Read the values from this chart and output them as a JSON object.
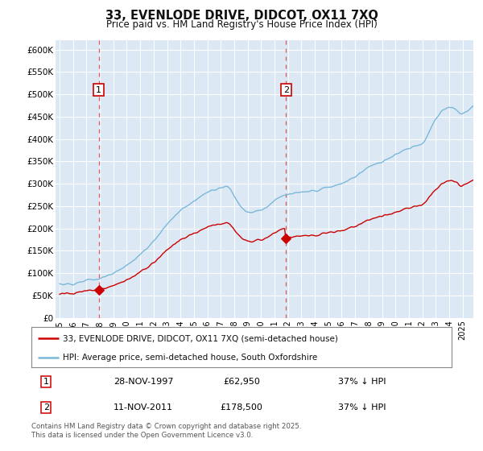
{
  "title": "33, EVENLODE DRIVE, DIDCOT, OX11 7XQ",
  "subtitle": "Price paid vs. HM Land Registry's House Price Index (HPI)",
  "plot_bg_color": "#dce9f5",
  "ylim": [
    0,
    620000
  ],
  "yticks": [
    0,
    50000,
    100000,
    150000,
    200000,
    250000,
    300000,
    350000,
    400000,
    450000,
    500000,
    550000,
    600000
  ],
  "ytick_labels": [
    "£0",
    "£50K",
    "£100K",
    "£150K",
    "£200K",
    "£250K",
    "£300K",
    "£350K",
    "£400K",
    "£450K",
    "£500K",
    "£550K",
    "£600K"
  ],
  "hpi_color": "#7ab8d9",
  "price_color": "#cc0000",
  "marker_color": "#cc0000",
  "vline_color": "#dd4444",
  "annotation_box_color": "#cc0000",
  "purchase1_year": 1997.91,
  "purchase1_price": 62950,
  "purchase2_year": 2011.86,
  "purchase2_price": 178500,
  "legend_label1": "33, EVENLODE DRIVE, DIDCOT, OX11 7XQ (semi-detached house)",
  "legend_label2": "HPI: Average price, semi-detached house, South Oxfordshire",
  "annotation1_date": "28-NOV-1997",
  "annotation1_price": "£62,950",
  "annotation1_pct": "37% ↓ HPI",
  "annotation2_date": "11-NOV-2011",
  "annotation2_price": "£178,500",
  "annotation2_pct": "37% ↓ HPI",
  "footer": "Contains HM Land Registry data © Crown copyright and database right 2025.\nThis data is licensed under the Open Government Licence v3.0."
}
